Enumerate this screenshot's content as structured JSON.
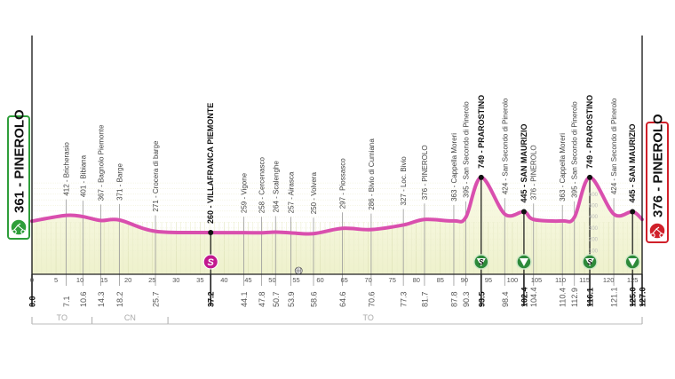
{
  "chart_data": {
    "type": "area",
    "xlabel": "",
    "ylabel": "",
    "xlim": [
      0,
      127
    ],
    "x_ticks": [
      0,
      5,
      10,
      15,
      20,
      25,
      30,
      35,
      40,
      45,
      50,
      55,
      60,
      65,
      70,
      75,
      80,
      85,
      90,
      95,
      100,
      105,
      110,
      115,
      120,
      125
    ],
    "elevation_scale_ticks": [
      100,
      200,
      300,
      400,
      500,
      600
    ],
    "grid": true,
    "line_color": "#d94fae",
    "fill_color": "#f6f7dc",
    "start": {
      "km": "0.0",
      "elev": 361,
      "label": "361 - PINEROLO",
      "color": "#2e9e3a"
    },
    "finish": {
      "km": "127.0",
      "elev": 376,
      "label": "376 - PINEROLO",
      "color": "#d0202a"
    },
    "waypoints": [
      {
        "km": 0.0,
        "km_label": "0.0",
        "elev": 361,
        "name": "",
        "bold": true
      },
      {
        "km": 7.1,
        "km_label": "7.1",
        "elev": 412,
        "name": "412 - Bricherasio",
        "bold": false
      },
      {
        "km": 10.6,
        "km_label": "10.6",
        "elev": 401,
        "name": "401 - Bibiana",
        "bold": false
      },
      {
        "km": 14.3,
        "km_label": "14.3",
        "elev": 367,
        "name": "367 - Bagnolo Piemonte",
        "bold": false
      },
      {
        "km": 18.2,
        "km_label": "18.2",
        "elev": 371,
        "name": "371 - Barge",
        "bold": false
      },
      {
        "km": 25.7,
        "km_label": "25.7",
        "elev": 271,
        "name": "271 - Crocera di barge",
        "bold": false
      },
      {
        "km": 37.2,
        "km_label": "37.2",
        "elev": 260,
        "name": "260 - VILLAFRANCA PIEMONTE",
        "bold": true,
        "marker": "sprint"
      },
      {
        "km": 44.1,
        "km_label": "44.1",
        "elev": 259,
        "name": "259 - Vigone",
        "bold": false
      },
      {
        "km": 47.8,
        "km_label": "47.8",
        "elev": 258,
        "name": "258 - Cercenasco",
        "bold": false
      },
      {
        "km": 50.7,
        "km_label": "50.7",
        "elev": 264,
        "name": "264 - Scalenghe",
        "bold": false
      },
      {
        "km": 53.9,
        "km_label": "53.9",
        "elev": 257,
        "name": "257 - Airasca",
        "bold": false
      },
      {
        "km": 58.6,
        "km_label": "58.6",
        "elev": 250,
        "name": "250 - Volvera",
        "bold": false
      },
      {
        "km": 64.6,
        "km_label": "64.6",
        "elev": 297,
        "name": "297 - Piossasco",
        "bold": false
      },
      {
        "km": 70.6,
        "km_label": "70.6",
        "elev": 286,
        "name": "286 - Bivio di Cumiana",
        "bold": false
      },
      {
        "km": 77.3,
        "km_label": "77.3",
        "elev": 327,
        "name": "327 - Loc. Bivio",
        "bold": false
      },
      {
        "km": 81.7,
        "km_label": "81.7",
        "elev": 376,
        "name": "376 - PINEROLO",
        "bold": false
      },
      {
        "km": 87.8,
        "km_label": "87.8",
        "elev": 363,
        "name": "363 - Cappella Moreri",
        "bold": false
      },
      {
        "km": 90.3,
        "km_label": "90.3",
        "elev": 395,
        "name": "395 - San Secondo di Pinerolo",
        "bold": false
      },
      {
        "km": 93.5,
        "km_label": "93.5",
        "elev": 749,
        "name": "749 - PRAROSTINO",
        "bold": true,
        "marker": "kom"
      },
      {
        "km": 98.4,
        "km_label": "98.4",
        "elev": 424,
        "name": "424 - San Secondo di Pinerolo",
        "bold": false
      },
      {
        "km": 102.4,
        "km_label": "102.4",
        "elev": 445,
        "name": "445 - SAN MAURIZIO",
        "bold": true,
        "marker": "triangle"
      },
      {
        "km": 104.4,
        "km_label": "104.4",
        "elev": 376,
        "name": "376 - PINEROLO",
        "bold": false
      },
      {
        "km": 110.4,
        "km_label": "110.4",
        "elev": 363,
        "name": "363 - Cappella Moreri",
        "bold": false
      },
      {
        "km": 112.9,
        "km_label": "112.9",
        "elev": 395,
        "name": "395 - San Secondo di Pinerolo",
        "bold": false
      },
      {
        "km": 116.1,
        "km_label": "116.1",
        "elev": 749,
        "name": "749 - PRAROSTINO",
        "bold": true,
        "marker": "kom"
      },
      {
        "km": 121.1,
        "km_label": "121.1",
        "elev": 424,
        "name": "424 - San Secondo di Pinerolo",
        "bold": false
      },
      {
        "km": 125.0,
        "km_label": "125.0",
        "elev": 445,
        "name": "445 - SAN MAURIZIO",
        "bold": true,
        "marker": "triangle"
      },
      {
        "km": 127.0,
        "km_label": "127.0",
        "elev": 376,
        "name": "",
        "bold": true
      }
    ],
    "feed_zone_km": 55.5,
    "provinces": [
      {
        "label": "TO",
        "from": 0,
        "to": 12.5
      },
      {
        "label": "CN",
        "from": 12.5,
        "to": 28.3
      },
      {
        "label": "TO",
        "from": 28.3,
        "to": 127
      }
    ],
    "marker_symbols": {
      "sprint": "S",
      "kom": "S"
    }
  }
}
